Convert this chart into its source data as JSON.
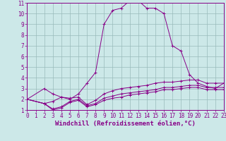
{
  "xlabel": "Windchill (Refroidissement éolien,°C)",
  "bg_color": "#cce8e8",
  "line_color": "#880088",
  "grid_color": "#99bbbb",
  "xmin": 0,
  "xmax": 23,
  "ymin": 1,
  "ymax": 11,
  "yticks": [
    1,
    2,
    3,
    4,
    5,
    6,
    7,
    8,
    9,
    10,
    11
  ],
  "xticks": [
    0,
    1,
    2,
    3,
    4,
    5,
    6,
    7,
    8,
    9,
    10,
    11,
    12,
    13,
    14,
    15,
    16,
    17,
    18,
    19,
    20,
    21,
    22,
    23
  ],
  "series": [
    {
      "x": [
        0,
        2,
        3,
        4,
        5,
        6,
        7,
        8,
        9,
        10,
        11,
        12,
        13,
        14,
        15,
        16,
        17,
        18,
        19,
        20,
        21,
        22,
        23
      ],
      "y": [
        2,
        3,
        2.5,
        2.2,
        2.0,
        2.5,
        3.5,
        4.5,
        9.0,
        10.3,
        10.5,
        11.2,
        11.2,
        10.5,
        10.5,
        10.0,
        7.0,
        6.5,
        4.3,
        3.5,
        3.2,
        3.0,
        3.5
      ]
    },
    {
      "x": [
        0,
        2,
        3,
        4,
        5,
        6,
        7,
        8,
        9,
        10,
        11,
        12,
        13,
        14,
        15,
        16,
        17,
        18,
        19,
        20,
        21,
        22,
        23
      ],
      "y": [
        2,
        1.6,
        1.8,
        2.2,
        2.1,
        2.2,
        1.5,
        1.9,
        2.5,
        2.8,
        3.0,
        3.1,
        3.2,
        3.3,
        3.5,
        3.6,
        3.6,
        3.7,
        3.8,
        3.8,
        3.5,
        3.5,
        3.5
      ]
    },
    {
      "x": [
        0,
        2,
        3,
        4,
        5,
        6,
        7,
        8,
        9,
        10,
        11,
        12,
        13,
        14,
        15,
        16,
        17,
        18,
        19,
        20,
        21,
        22,
        23
      ],
      "y": [
        2,
        1.6,
        1.1,
        1.3,
        1.8,
        2.0,
        1.4,
        1.6,
        2.1,
        2.3,
        2.5,
        2.6,
        2.7,
        2.8,
        2.9,
        3.1,
        3.1,
        3.2,
        3.3,
        3.3,
        3.1,
        3.1,
        3.1
      ]
    },
    {
      "x": [
        0,
        2,
        3,
        4,
        5,
        6,
        7,
        8,
        9,
        10,
        11,
        12,
        13,
        14,
        15,
        16,
        17,
        18,
        19,
        20,
        21,
        22,
        23
      ],
      "y": [
        2,
        1.6,
        1.0,
        1.2,
        1.7,
        1.9,
        1.3,
        1.5,
        1.9,
        2.1,
        2.2,
        2.4,
        2.5,
        2.6,
        2.7,
        2.9,
        2.9,
        3.0,
        3.1,
        3.1,
        2.9,
        2.9,
        2.9
      ]
    }
  ],
  "tick_fontsize": 5.5,
  "label_fontsize": 6.5
}
